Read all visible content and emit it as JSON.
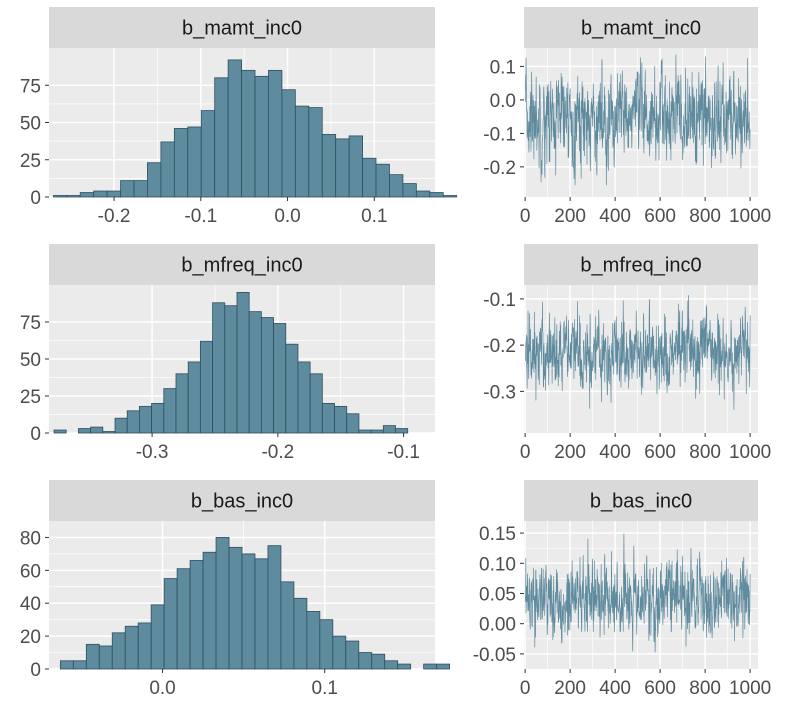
{
  "chart_data": [
    {
      "type": "bar",
      "title": "b_mamt_inc0",
      "bin_start": -0.27,
      "bin_width": 0.0155,
      "values": [
        1,
        1,
        3,
        4,
        4,
        11,
        11,
        23,
        37,
        46,
        47,
        58,
        80,
        92,
        85,
        81,
        85,
        72,
        61,
        60,
        42,
        39,
        41,
        26,
        22,
        15,
        9,
        4,
        3,
        1
      ],
      "xlim": [
        -0.275,
        0.17
      ],
      "ylim": [
        0,
        100
      ],
      "xticks": [
        -0.2,
        -0.1,
        0.0,
        0.1
      ],
      "xtick_labels": [
        "-0.2",
        "-0.1",
        "0.0",
        "0.1"
      ],
      "yticks": [
        0,
        25,
        50,
        75
      ],
      "ytick_labels": [
        "0",
        "25",
        "50",
        "75"
      ],
      "grid": true
    },
    {
      "type": "line",
      "title": "b_mamt_inc0",
      "x_range": [
        1,
        1000
      ],
      "mean": -0.055,
      "spread": 0.065,
      "min": -0.255,
      "max": 0.135,
      "xlim": [
        -5,
        1035
      ],
      "ylim": [
        -0.29,
        0.155
      ],
      "xticks": [
        0,
        200,
        400,
        600,
        800,
        1000
      ],
      "xtick_labels": [
        "0",
        "200",
        "400",
        "600",
        "800",
        "1000"
      ],
      "yticks": [
        -0.2,
        -0.1,
        0.0,
        0.1
      ],
      "ytick_labels": [
        "-0.2",
        "-0.1",
        "0.0",
        "0.1"
      ],
      "color": "#5f8b9e",
      "grid": true
    },
    {
      "type": "bar",
      "title": "b_mfreq_inc0",
      "bin_start": -0.378,
      "bin_width": 0.0097,
      "values": [
        2,
        0,
        3,
        4,
        1,
        10,
        15,
        18,
        20,
        30,
        40,
        48,
        62,
        88,
        86,
        95,
        82,
        78,
        74,
        60,
        48,
        40,
        20,
        18,
        13,
        2,
        2,
        5,
        3
      ],
      "xlim": [
        -0.382,
        -0.075
      ],
      "ylim": [
        0,
        100
      ],
      "xticks": [
        -0.3,
        -0.2,
        -0.1
      ],
      "xtick_labels": [
        "-0.3",
        "-0.2",
        "-0.1"
      ],
      "yticks": [
        0,
        25,
        50,
        75
      ],
      "ytick_labels": [
        "0",
        "25",
        "50",
        "75"
      ],
      "grid": true
    },
    {
      "type": "line",
      "title": "b_mfreq_inc0",
      "x_range": [
        1,
        1000
      ],
      "mean": -0.215,
      "spread": 0.04,
      "min": -0.375,
      "max": -0.085,
      "xlim": [
        -5,
        1035
      ],
      "ylim": [
        -0.39,
        -0.07
      ],
      "xticks": [
        0,
        200,
        400,
        600,
        800,
        1000
      ],
      "xtick_labels": [
        "0",
        "200",
        "400",
        "600",
        "800",
        "1000"
      ],
      "yticks": [
        -0.3,
        -0.2,
        -0.1
      ],
      "ytick_labels": [
        "-0.3",
        "-0.2",
        "-0.1"
      ],
      "color": "#5f8b9e",
      "grid": true
    },
    {
      "type": "bar",
      "title": "b_bas_inc0",
      "bin_start": -0.063,
      "bin_width": 0.008,
      "values": [
        5,
        5,
        15,
        14,
        22,
        26,
        28,
        39,
        55,
        61,
        66,
        71,
        80,
        74,
        70,
        67,
        75,
        53,
        43,
        35,
        30,
        20,
        17,
        10,
        9,
        5,
        3,
        0,
        3,
        3
      ],
      "xlim": [
        -0.07,
        0.168
      ],
      "ylim": [
        0,
        90
      ],
      "xticks": [
        0.0,
        0.1
      ],
      "xtick_labels": [
        "0.0",
        "0.1"
      ],
      "yticks": [
        0,
        20,
        40,
        60,
        80
      ],
      "ytick_labels": [
        "0",
        "20",
        "40",
        "60",
        "80"
      ],
      "grid": true
    },
    {
      "type": "line",
      "title": "b_bas_inc0",
      "x_range": [
        1,
        1000
      ],
      "mean": 0.04,
      "spread": 0.03,
      "min": -0.068,
      "max": 0.158,
      "xlim": [
        -5,
        1035
      ],
      "ylim": [
        -0.075,
        0.17
      ],
      "xticks": [
        0,
        200,
        400,
        600,
        800,
        1000
      ],
      "xtick_labels": [
        "0",
        "200",
        "400",
        "600",
        "800",
        "1000"
      ],
      "yticks": [
        -0.05,
        0.0,
        0.05,
        0.1,
        0.15
      ],
      "ytick_labels": [
        "-0.05",
        "0.00",
        "0.05",
        "0.10",
        "0.15"
      ],
      "color": "#5f8b9e",
      "grid": true
    }
  ],
  "colors": {
    "panel_background": "#ebebeb",
    "strip_background": "#d9d9d9",
    "grid_major": "#ffffff",
    "bar_fill": "#5f8b9e",
    "bar_outline": "#2e4f62",
    "trace_line": "#5f8b9e",
    "axis_text": "#4d4d4d",
    "strip_text": "#1a1a1a"
  }
}
